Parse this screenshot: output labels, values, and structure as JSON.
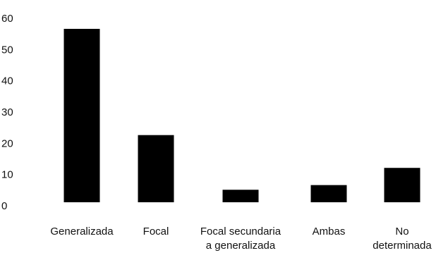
{
  "chart_data": {
    "type": "bar",
    "categories": [
      [
        "Generalizada"
      ],
      [
        "Focal"
      ],
      [
        "Focal secundaria",
        "a generalizada"
      ],
      [
        "Ambas"
      ],
      [
        "No",
        "determinada"
      ]
    ],
    "values": [
      55.5,
      21.5,
      4,
      5.5,
      11
    ],
    "ylim": [
      0,
      60
    ],
    "yticks": [
      0,
      10,
      20,
      30,
      40,
      50,
      60
    ],
    "title": "",
    "xlabel": "",
    "ylabel": "",
    "grid": false,
    "bar_color": "#000000"
  }
}
